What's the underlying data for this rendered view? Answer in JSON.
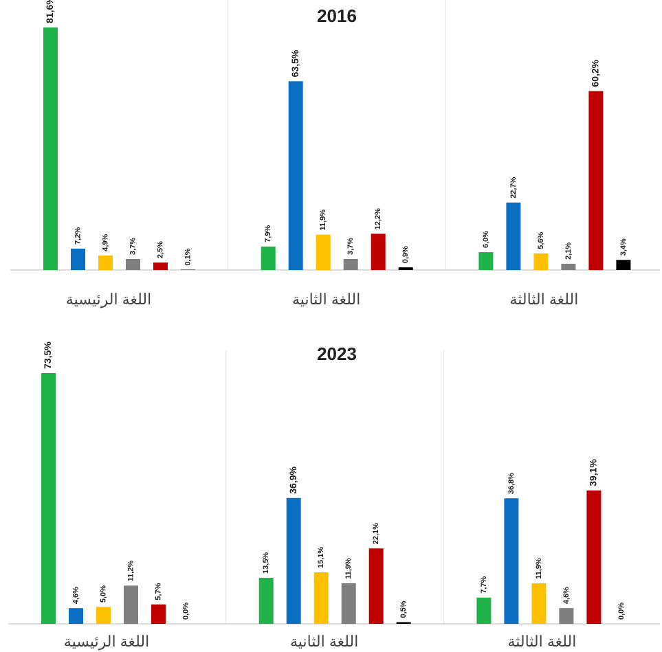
{
  "chart_data": [
    {
      "type": "bar",
      "title": "2016",
      "categories": [
        "اللغة الرئيسية",
        "اللغة الثانية",
        "اللغة الثالثة"
      ],
      "series": [
        {
          "color": "#1fb34a",
          "values": [
            81.6,
            7.9,
            6.0
          ],
          "value_labels": [
            "81,6%",
            "7,9%",
            "6,0%"
          ]
        },
        {
          "color": "#0a6fc2",
          "values": [
            7.2,
            63.5,
            22.7
          ],
          "value_labels": [
            "7,2%",
            "63,5%",
            "22,7%"
          ]
        },
        {
          "color": "#ffc000",
          "values": [
            4.9,
            11.9,
            5.6
          ],
          "value_labels": [
            "4,9%",
            "11,9%",
            "5,6%"
          ]
        },
        {
          "color": "#7f7f7f",
          "values": [
            3.7,
            3.7,
            2.1
          ],
          "value_labels": [
            "3,7%",
            "3,7%",
            "2,1%"
          ]
        },
        {
          "color": "#c00000",
          "values": [
            2.5,
            12.2,
            60.2
          ],
          "value_labels": [
            "2,5%",
            "12,2%",
            "60,2%"
          ]
        },
        {
          "color": "#000000",
          "values": [
            0.1,
            0.9,
            3.4
          ],
          "value_labels": [
            "0,1%",
            "0,9%",
            "3,4%"
          ]
        }
      ]
    },
    {
      "type": "bar",
      "title": "2023",
      "categories": [
        "اللغة الرئيسية",
        "اللغة الثانية",
        "اللغة الثالثة"
      ],
      "series": [
        {
          "color": "#1fb34a",
          "values": [
            73.5,
            13.5,
            7.7
          ],
          "value_labels": [
            "73,5%",
            "13,5%",
            "7,7%"
          ]
        },
        {
          "color": "#0a6fc2",
          "values": [
            4.6,
            36.9,
            36.8
          ],
          "value_labels": [
            "4,6%",
            "36,9%",
            "36,8%"
          ]
        },
        {
          "color": "#ffc000",
          "values": [
            5.0,
            15.1,
            11.9
          ],
          "value_labels": [
            "5,0%",
            "15,1%",
            "11,9%"
          ]
        },
        {
          "color": "#7f7f7f",
          "values": [
            11.2,
            11.9,
            4.6
          ],
          "value_labels": [
            "11,2%",
            "11,9%",
            "4,6%"
          ]
        },
        {
          "color": "#c00000",
          "values": [
            5.7,
            22.1,
            39.1
          ],
          "value_labels": [
            "5,7%",
            "22,1%",
            "39,1%"
          ]
        },
        {
          "color": "#000000",
          "values": [
            0.0,
            0.5,
            0.0
          ],
          "value_labels": [
            "0,0%",
            "0,5%",
            "0,0%"
          ]
        }
      ]
    }
  ]
}
